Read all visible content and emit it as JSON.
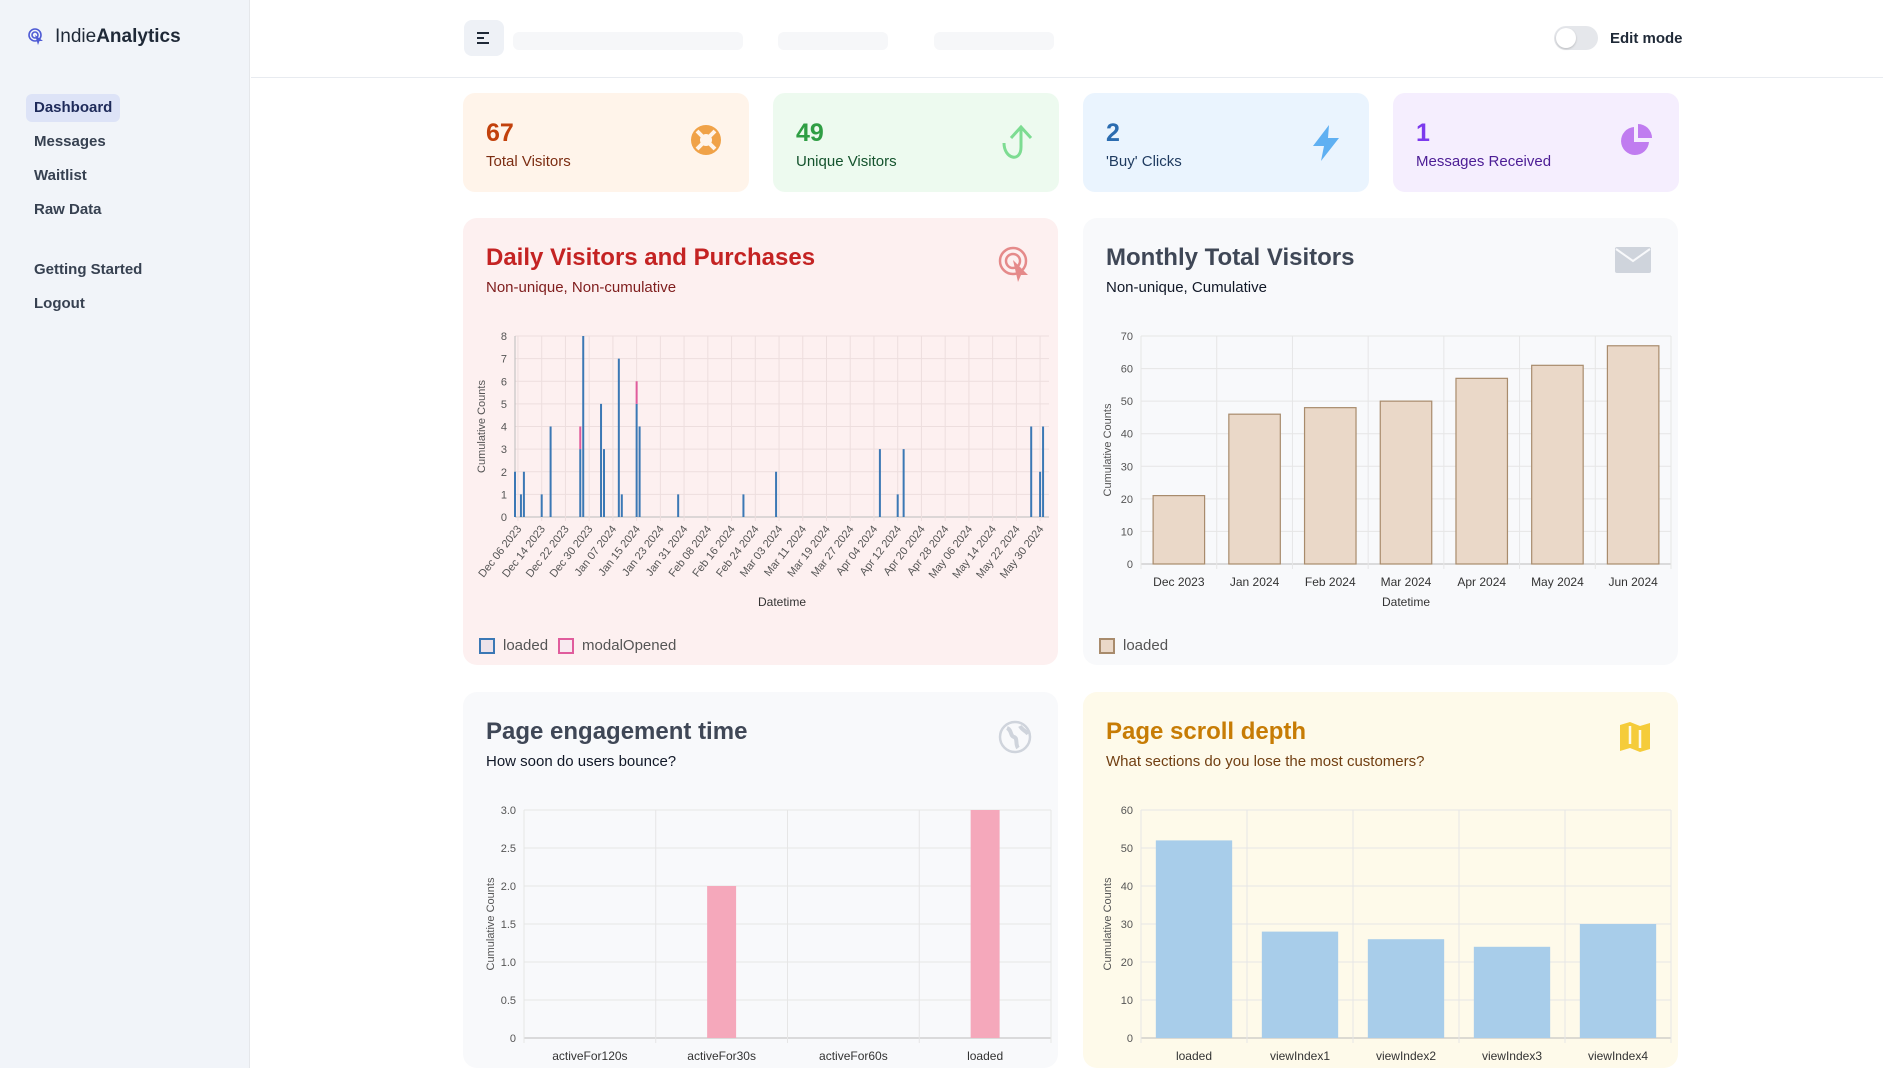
{
  "brand": {
    "name_light": "Indie",
    "name_bold": "Analytics"
  },
  "nav": {
    "primary": [
      {
        "label": "Dashboard",
        "active": true
      },
      {
        "label": "Messages"
      },
      {
        "label": "Waitlist"
      },
      {
        "label": "Raw Data"
      }
    ],
    "secondary": [
      {
        "label": "Getting Started"
      },
      {
        "label": "Logout"
      }
    ]
  },
  "header": {
    "edit_mode_label": "Edit mode",
    "edit_mode_on": false
  },
  "stats": [
    {
      "value": "67",
      "label": "Total Visitors",
      "icon": "lifebuoy-icon",
      "bg": "#fff4ea",
      "fg": "#c2410c",
      "label_color": "#7c2d12",
      "icon_color": "#f0a248"
    },
    {
      "value": "49",
      "label": "Unique Visitors",
      "icon": "arrow-up-curve-icon",
      "bg": "#edfaef",
      "fg": "#2f9e44",
      "label_color": "#14532d",
      "icon_color": "#7ddc92"
    },
    {
      "value": "2",
      "label": "'Buy' Clicks",
      "icon": "lightning-icon",
      "bg": "#eaf4fe",
      "fg": "#2b6cb0",
      "label_color": "#1e3a5f",
      "icon_color": "#5fb0f2"
    },
    {
      "value": "1",
      "label": "Messages Received",
      "icon": "pie-chart-icon",
      "bg": "#f5eefe",
      "fg": "#7c3aed",
      "label_color": "#4c1d95",
      "icon_color": "#c07cf0"
    }
  ],
  "cards": {
    "daily": {
      "title": "Daily Visitors and Purchases",
      "subtitle": "Non-unique, Non-cumulative",
      "icon": "tap-icon",
      "bg": "#fdf0f0",
      "title_color": "#c42323",
      "sub_color": "#7f1d1d",
      "icon_color": "#e58a8a",
      "legend": [
        "loaded",
        "modalOpened"
      ]
    },
    "monthly": {
      "title": "Monthly Total Visitors",
      "subtitle": "Non-unique, Cumulative",
      "icon": "envelope-icon",
      "bg": "#f8f9fb",
      "title_color": "#3f4756",
      "sub_color": "#111827",
      "icon_color": "#cfd4dc",
      "legend": [
        "loaded"
      ]
    },
    "engagement": {
      "title": "Page engagement time",
      "subtitle": "How soon do users bounce?",
      "icon": "globe-icon",
      "bg": "#f8f9fb",
      "title_color": "#3f4756",
      "sub_color": "#111827",
      "icon_color": "#cfd4dc"
    },
    "scroll": {
      "title": "Page scroll depth",
      "subtitle": "What sections do you lose the most customers?",
      "icon": "map-icon",
      "bg": "#fefaea",
      "title_color": "#c77c05",
      "sub_color": "#713f12",
      "icon_color": "#f5cc3a"
    }
  },
  "chart_data": [
    {
      "id": "daily",
      "type": "bar",
      "xlabel": "Datetime",
      "ylabel": "Cumulative Counts",
      "ylim": [
        0,
        8
      ],
      "yticks": [
        "0",
        "1",
        "2",
        "3",
        "4",
        "5",
        "6",
        "7",
        "8"
      ],
      "xticks": [
        "Dec 06 2023",
        "Dec 14 2023",
        "Dec 22 2023",
        "Dec 30 2023",
        "Jan 07 2024",
        "Jan 15 2024",
        "Jan 23 2024",
        "Jan 31 2024",
        "Feb 08 2024",
        "Feb 16 2024",
        "Feb 24 2024",
        "Mar 03 2024",
        "Mar 11 2024",
        "Mar 19 2024",
        "Mar 27 2024",
        "Apr 04 2024",
        "Apr 12 2024",
        "Apr 20 2024",
        "Apr 28 2024",
        "May 06 2024",
        "May 14 2024",
        "May 22 2024",
        "May 30 2024"
      ],
      "date_range": [
        "2023-12-05",
        "2024-06-02"
      ],
      "series": [
        {
          "name": "loaded",
          "color": "#3b78b5",
          "points": [
            [
              "2023-12-05",
              2
            ],
            [
              "2023-12-07",
              1
            ],
            [
              "2023-12-08",
              2
            ],
            [
              "2023-12-14",
              1
            ],
            [
              "2023-12-17",
              4
            ],
            [
              "2023-12-27",
              3
            ],
            [
              "2023-12-28",
              8
            ],
            [
              "2024-01-03",
              5
            ],
            [
              "2024-01-04",
              3
            ],
            [
              "2024-01-09",
              7
            ],
            [
              "2024-01-10",
              1
            ],
            [
              "2024-01-15",
              5
            ],
            [
              "2024-01-16",
              4
            ],
            [
              "2024-01-29",
              1
            ],
            [
              "2024-02-20",
              1
            ],
            [
              "2024-03-02",
              2
            ],
            [
              "2024-04-06",
              3
            ],
            [
              "2024-04-12",
              1
            ],
            [
              "2024-04-14",
              3
            ],
            [
              "2024-05-27",
              4
            ],
            [
              "2024-05-30",
              2
            ],
            [
              "2024-05-31",
              4
            ]
          ]
        },
        {
          "name": "modalOpened",
          "color": "#e05c9c",
          "points": [
            [
              "2023-12-27",
              1
            ],
            [
              "2024-01-15",
              1
            ]
          ]
        }
      ]
    },
    {
      "id": "monthly",
      "type": "bar",
      "xlabel": "Datetime",
      "ylabel": "Cumulative Counts",
      "ylim": [
        0,
        70
      ],
      "yticks": [
        "0",
        "10",
        "20",
        "30",
        "40",
        "50",
        "60",
        "70"
      ],
      "categories": [
        "Dec 2023",
        "Jan 2024",
        "Feb 2024",
        "Mar 2024",
        "Apr 2024",
        "May 2024",
        "Jun 2024"
      ],
      "series": [
        {
          "name": "loaded",
          "values": [
            21,
            46,
            48,
            50,
            57,
            61,
            67
          ],
          "color": "#ead8c8",
          "stroke": "#a88b6c"
        }
      ]
    },
    {
      "id": "engagement",
      "type": "bar",
      "xlabel": "",
      "ylabel": "Cumulative Counts",
      "ylim": [
        0,
        3
      ],
      "yticks": [
        "0",
        "0.5",
        "1.0",
        "1.5",
        "2.0",
        "2.5",
        "3.0"
      ],
      "categories": [
        "activeFor120s",
        "activeFor30s",
        "activeFor60s",
        "loaded"
      ],
      "series": [
        {
          "values": [
            0,
            2,
            0,
            3
          ],
          "color": "#f5a8bb"
        }
      ]
    },
    {
      "id": "scroll",
      "type": "bar",
      "xlabel": "",
      "ylabel": "Cumulative Counts",
      "ylim": [
        0,
        60
      ],
      "yticks": [
        "0",
        "10",
        "20",
        "30",
        "40",
        "50",
        "60"
      ],
      "categories": [
        "loaded",
        "viewIndex1",
        "viewIndex2",
        "viewIndex3",
        "viewIndex4"
      ],
      "series": [
        {
          "values": [
            52,
            28,
            26,
            24,
            30
          ],
          "color": "#a8cdea"
        }
      ]
    }
  ]
}
